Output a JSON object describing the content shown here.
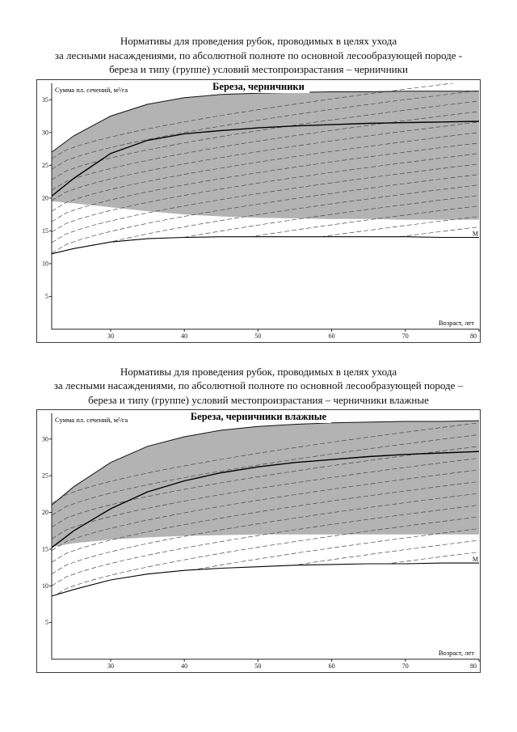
{
  "page": {
    "heading1": {
      "line1": "Нормативы для проведения рубок, проводимых в целях ухода",
      "line2": "за лесными насаждениями, по абсолютной полноте по основной лесообразующей породе -",
      "line3": "береза и типу (группе) условий местопроизрастания – черничники"
    },
    "heading2": {
      "line1": "Нормативы для проведения рубок, проводимых в целях ухода",
      "line2": "за лесными насаждениями, по абсолютной полноте по основной лесообразующей породе –",
      "line3": "береза и типу (группе) условий местопроизрастания – черничники влажные"
    }
  },
  "chart_data": [
    {
      "type": "area",
      "title": "Береза, черничники",
      "ylabel": "Сумма пл. сечений, м²/га",
      "xlabel": "Возраст, лет",
      "xlim": [
        22,
        80
      ],
      "ylim": [
        0,
        37.5
      ],
      "xticks": [
        30,
        40,
        50,
        60,
        70,
        80
      ],
      "yticks": [
        5,
        10,
        15,
        20,
        25,
        30,
        35
      ],
      "band_color": "#b3b3b3",
      "x": [
        22,
        25,
        30,
        35,
        40,
        45,
        50,
        55,
        60,
        65,
        70,
        75,
        80
      ],
      "band_top": [
        27,
        29.5,
        32.5,
        34.3,
        35.3,
        35.8,
        36,
        36.1,
        36.2,
        36.2,
        36.3,
        36.3,
        36.3
      ],
      "band_bottom": [
        19.5,
        19.2,
        18.6,
        18,
        17.5,
        17.2,
        17,
        16.9,
        16.8,
        16.8,
        16.7,
        16.7,
        16.7
      ],
      "curve_main": [
        20.3,
        23,
        26.8,
        28.8,
        29.8,
        30.3,
        30.7,
        31,
        31.2,
        31.4,
        31.5,
        31.6,
        31.7
      ],
      "curve_min": {
        "label": "M",
        "values": [
          11.5,
          12.3,
          13.3,
          13.8,
          14,
          14.1,
          14.1,
          14.1,
          14.1,
          14.1,
          14.1,
          14,
          14
        ]
      },
      "trajectories": {
        "offset_start": 2,
        "offset_end": 26,
        "step": 1.6,
        "rise": 12,
        "exponent": 0.65
      }
    },
    {
      "type": "area",
      "title": "Береза, черничники влажные",
      "ylabel": "Сумма пл. сечений, м²/га",
      "xlabel": "Возраст, лет",
      "xlim": [
        22,
        80
      ],
      "ylim": [
        0,
        33.5
      ],
      "xticks": [
        30,
        40,
        50,
        60,
        70,
        80
      ],
      "yticks": [
        5,
        10,
        15,
        20,
        25,
        30
      ],
      "band_color": "#b3b3b3",
      "x": [
        22,
        25,
        30,
        35,
        40,
        45,
        50,
        55,
        60,
        65,
        70,
        75,
        80
      ],
      "band_top": [
        21,
        23.5,
        26.8,
        29,
        30.3,
        31.2,
        31.7,
        32,
        32.2,
        32.3,
        32.4,
        32.4,
        32.5
      ],
      "band_bottom": [
        15.3,
        15.8,
        16.3,
        16.6,
        16.8,
        16.9,
        17,
        17,
        17,
        17,
        17,
        17,
        17
      ],
      "curve_main": [
        15.2,
        17.5,
        20.5,
        22.8,
        24.3,
        25.4,
        26.2,
        26.8,
        27.2,
        27.6,
        27.9,
        28.1,
        28.3
      ],
      "curve_min": {
        "label": "M",
        "values": [
          8.6,
          9.5,
          10.8,
          11.6,
          12.1,
          12.4,
          12.6,
          12.8,
          12.9,
          13,
          13,
          13.1,
          13.1
        ]
      },
      "trajectories": {
        "offset_start": 2,
        "offset_end": 22,
        "step": 1.6,
        "rise": 11,
        "exponent": 0.65
      }
    }
  ]
}
